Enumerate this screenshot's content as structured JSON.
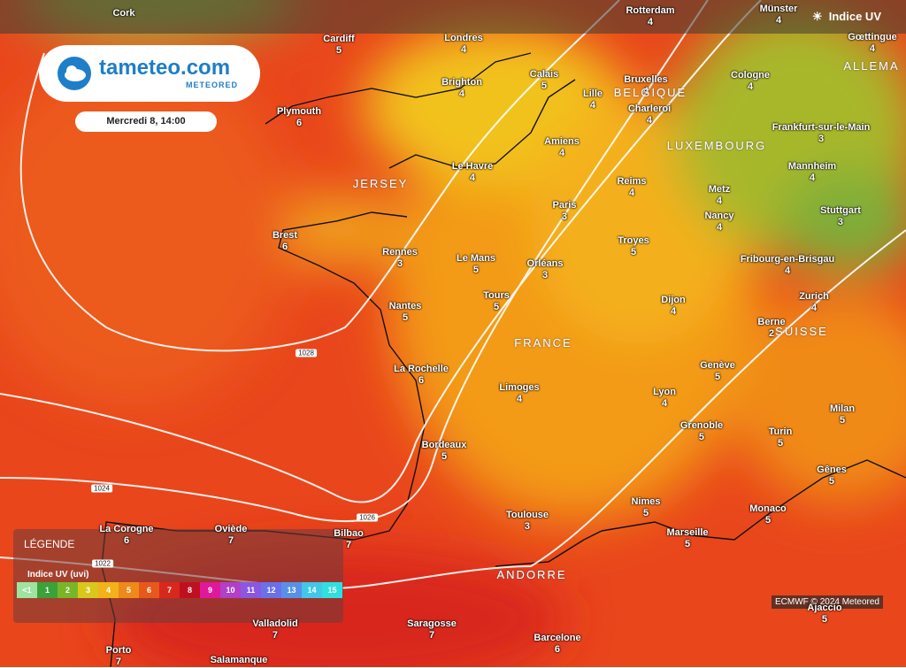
{
  "header": {
    "indicator": "Indice UV"
  },
  "logo": {
    "name": "tameteo.com",
    "brand": "METEORED"
  },
  "date": "Mercredi 8, 14:00",
  "cities": [
    {
      "name": "Cork"
    },
    {
      "name": "Cardiff",
      "value": 5
    },
    {
      "name": "Londres",
      "value": 4
    },
    {
      "name": "Rotterdam",
      "value": 4
    },
    {
      "name": "Münster",
      "value": 4
    },
    {
      "name": "Gœttingue",
      "value": 4
    },
    {
      "name": "Calais",
      "value": 5
    },
    {
      "name": "Brighton",
      "value": 4
    },
    {
      "name": "Plymouth",
      "value": 6
    },
    {
      "name": "Bruxelles",
      "value": 4
    },
    {
      "name": "Lille",
      "value": 4
    },
    {
      "name": "Charleroi",
      "value": 4
    },
    {
      "name": "Cologne",
      "value": 4
    },
    {
      "name": "Amiens",
      "value": 4
    },
    {
      "name": "Frankfurt-sur-le-Main",
      "value": 3
    },
    {
      "name": "Le Havre",
      "value": 4
    },
    {
      "name": "Reims",
      "value": 4
    },
    {
      "name": "Mannheim",
      "value": 4
    },
    {
      "name": "Metz",
      "value": 4
    },
    {
      "name": "Paris",
      "value": 3
    },
    {
      "name": "Nancy",
      "value": 4
    },
    {
      "name": "Stuttgart",
      "value": 3
    },
    {
      "name": "Brest",
      "value": 6
    },
    {
      "name": "Rennes",
      "value": 3
    },
    {
      "name": "Le Mans",
      "value": 5
    },
    {
      "name": "Troyes",
      "value": 5
    },
    {
      "name": "Orléans",
      "value": 3
    },
    {
      "name": "Fribourg-en-Brisgau",
      "value": 4
    },
    {
      "name": "Tours",
      "value": 5
    },
    {
      "name": "Dijon",
      "value": 4
    },
    {
      "name": "Zurich",
      "value": 4
    },
    {
      "name": "Nantes",
      "value": 5
    },
    {
      "name": "Berne",
      "value": 2
    },
    {
      "name": "La Rochelle",
      "value": 6
    },
    {
      "name": "Genève",
      "value": 5
    },
    {
      "name": "Limoges",
      "value": 4
    },
    {
      "name": "Lyon",
      "value": 4
    },
    {
      "name": "Milan",
      "value": 5
    },
    {
      "name": "Grenoble",
      "value": 5
    },
    {
      "name": "Turin",
      "value": 5
    },
    {
      "name": "Bordeaux",
      "value": 5
    },
    {
      "name": "Gênes",
      "value": 5
    },
    {
      "name": "Nimes",
      "value": 5
    },
    {
      "name": "Monaco",
      "value": 5
    },
    {
      "name": "Toulouse",
      "value": 3
    },
    {
      "name": "Marseille",
      "value": 5
    },
    {
      "name": "La Corogne",
      "value": 6
    },
    {
      "name": "Oviède",
      "value": 7
    },
    {
      "name": "Bilbao",
      "value": 7
    },
    {
      "name": "Valladolid",
      "value": 7
    },
    {
      "name": "Saragosse",
      "value": 7
    },
    {
      "name": "Barcelone",
      "value": 6
    },
    {
      "name": "Porto",
      "value": 7
    },
    {
      "name": "Salamanque"
    },
    {
      "name": "Ajaccio",
      "value": 5
    }
  ],
  "regions": [
    "JERSEY",
    "BELGIQUE",
    "LUXEMBOURG",
    "FRANCE",
    "SUISSE",
    "ALLEMA",
    "ANDORRE"
  ],
  "isobars": [
    "1028",
    "1024",
    "1026",
    "1022"
  ],
  "legend": {
    "title": "LÉGENDE",
    "subtitle": "Indice UV (uvi)",
    "scale": [
      "<1",
      "1",
      "2",
      "3",
      "4",
      "5",
      "6",
      "7",
      "8",
      "9",
      "10",
      "11",
      "12",
      "13",
      "14",
      "15"
    ]
  },
  "credit": "ECMWF © 2024 Meteored"
}
